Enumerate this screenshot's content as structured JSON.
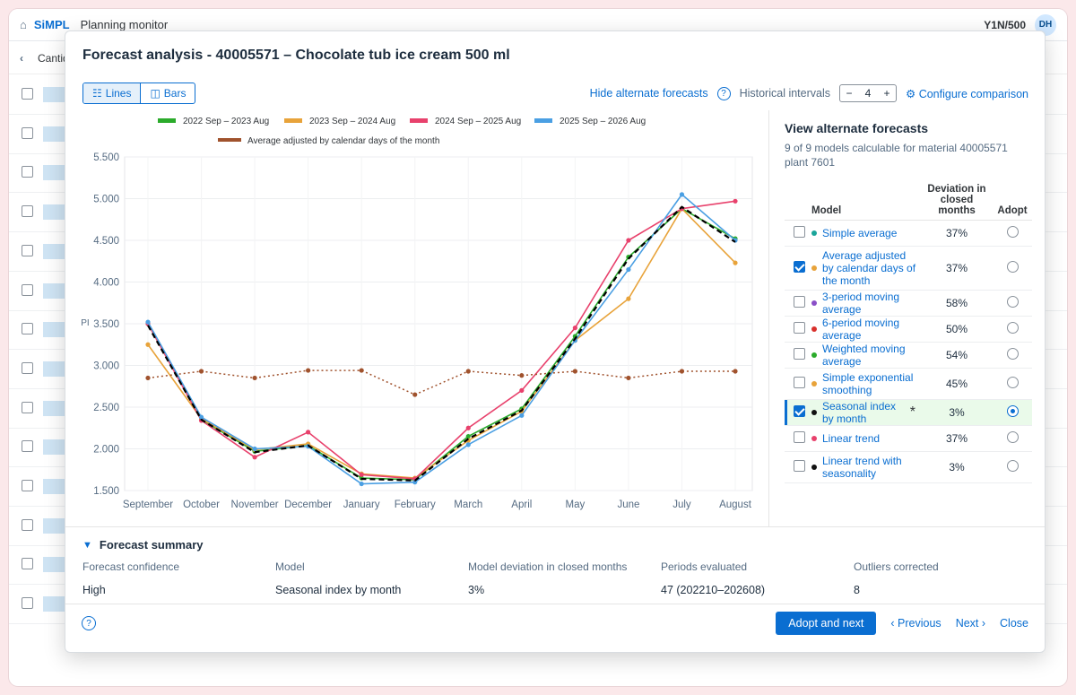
{
  "topbar": {
    "home_icon": "home-icon",
    "brand": "SiMPL",
    "app_title": "Planning monitor",
    "system": "Y1N/500",
    "avatar": "DH"
  },
  "background": {
    "back_glyph": "‹",
    "column_label": "Cantida"
  },
  "dialog": {
    "title": "Forecast analysis - 40005571 – Chocolate tub ice cream 500 ml",
    "view_toggle": {
      "lines": "Lines",
      "bars": "Bars",
      "selected": "lines"
    },
    "hide_link": "Hide alternate forecasts",
    "help": "?",
    "hist_label": "Historical intervals",
    "hist_value": "4",
    "minus": "−",
    "plus": "+",
    "config_link": "Configure comparison"
  },
  "chart_data": {
    "type": "line",
    "ylabel": "PI",
    "ylim": [
      1500,
      5500
    ],
    "yticks": [
      "5.500",
      "5.000",
      "4.500",
      "4.000",
      "3.500",
      "3.000",
      "2.500",
      "2.000",
      "1.500"
    ],
    "categories": [
      "September",
      "October",
      "November",
      "December",
      "January",
      "February",
      "March",
      "April",
      "May",
      "June",
      "July",
      "August"
    ],
    "legend_position": "top",
    "series": [
      {
        "name": "2022 Sep – 2023 Aug",
        "color": "#2bab2b",
        "values": [
          3500,
          2350,
          1970,
          2040,
          1650,
          1630,
          2150,
          2480,
          3350,
          4300,
          4880,
          4520
        ]
      },
      {
        "name": "2023 Sep – 2024 Aug",
        "color": "#e8a33a",
        "values": [
          3250,
          2360,
          1990,
          2060,
          1700,
          1650,
          2100,
          2450,
          3300,
          3800,
          4880,
          4230
        ]
      },
      {
        "name": "2024 Sep – 2025 Aug",
        "color": "#e8416c",
        "values": [
          3500,
          2340,
          1900,
          2200,
          1690,
          1640,
          2250,
          2700,
          3450,
          4500,
          4880,
          4970
        ]
      },
      {
        "name": "2025 Sep – 2026 Aug",
        "color": "#4a9fe3",
        "values": [
          3520,
          2380,
          2000,
          2030,
          1580,
          1600,
          2050,
          2400,
          3300,
          4150,
          5050,
          4500
        ]
      },
      {
        "name": "Average adjusted by calendar days of the month",
        "color": "#a0522d",
        "style": "dotted",
        "values": [
          2850,
          2930,
          2850,
          2940,
          2940,
          2650,
          2930,
          2880,
          2930,
          2850,
          2930,
          2930
        ]
      }
    ],
    "forecast_line": {
      "color": "#000000",
      "style": "dashed",
      "values": [
        3480,
        2350,
        1960,
        2040,
        1640,
        1620,
        2120,
        2460,
        3320,
        4280,
        4900,
        4480
      ]
    }
  },
  "alt_panel": {
    "title": "View alternate forecasts",
    "subtitle": "9 of 9 models calculable for material 40005571 plant 7601",
    "col_model": "Model",
    "col_dev": "Deviation in closed months",
    "col_adopt": "Adopt",
    "models": [
      {
        "name": "Simple average",
        "color": "#1aa59a",
        "dev": "37%",
        "checked": false,
        "adopt": false
      },
      {
        "name": "Average adjusted by calendar days of the month",
        "color": "#e8a33a",
        "dev": "37%",
        "checked": true,
        "adopt": false
      },
      {
        "name": "3-period moving average",
        "color": "#8a4fc7",
        "dev": "58%",
        "checked": false,
        "adopt": false
      },
      {
        "name": "6-period moving average",
        "color": "#d9302c",
        "dev": "50%",
        "checked": false,
        "adopt": false
      },
      {
        "name": "Weighted moving average",
        "color": "#2bab2b",
        "dev": "54%",
        "checked": false,
        "adopt": false
      },
      {
        "name": "Simple exponential smoothing",
        "color": "#e8a33a",
        "dev": "45%",
        "checked": false,
        "adopt": false
      },
      {
        "name": "Seasonal index by month",
        "color": "#111111",
        "dev": "3%",
        "checked": true,
        "adopt": true,
        "star": "*",
        "selected": true
      },
      {
        "name": "Linear trend",
        "color": "#e8416c",
        "dev": "37%",
        "checked": false,
        "adopt": false
      },
      {
        "name": "Linear trend with seasonality",
        "color": "#111111",
        "dev": "3%",
        "checked": false,
        "adopt": false
      }
    ]
  },
  "summary": {
    "title": "Forecast summary",
    "items": [
      {
        "label": "Forecast confidence",
        "value": "High"
      },
      {
        "label": "Model",
        "value": "Seasonal index by month"
      },
      {
        "label": "Model deviation in closed months",
        "value": "3%"
      },
      {
        "label": "Periods evaluated",
        "value": "47 (202210–202608)"
      },
      {
        "label": "Outliers corrected",
        "value": "8"
      }
    ]
  },
  "footer": {
    "help": "?",
    "adopt_next": "Adopt and next",
    "previous": "‹ Previous",
    "next": "Next ›",
    "close": "Close"
  }
}
